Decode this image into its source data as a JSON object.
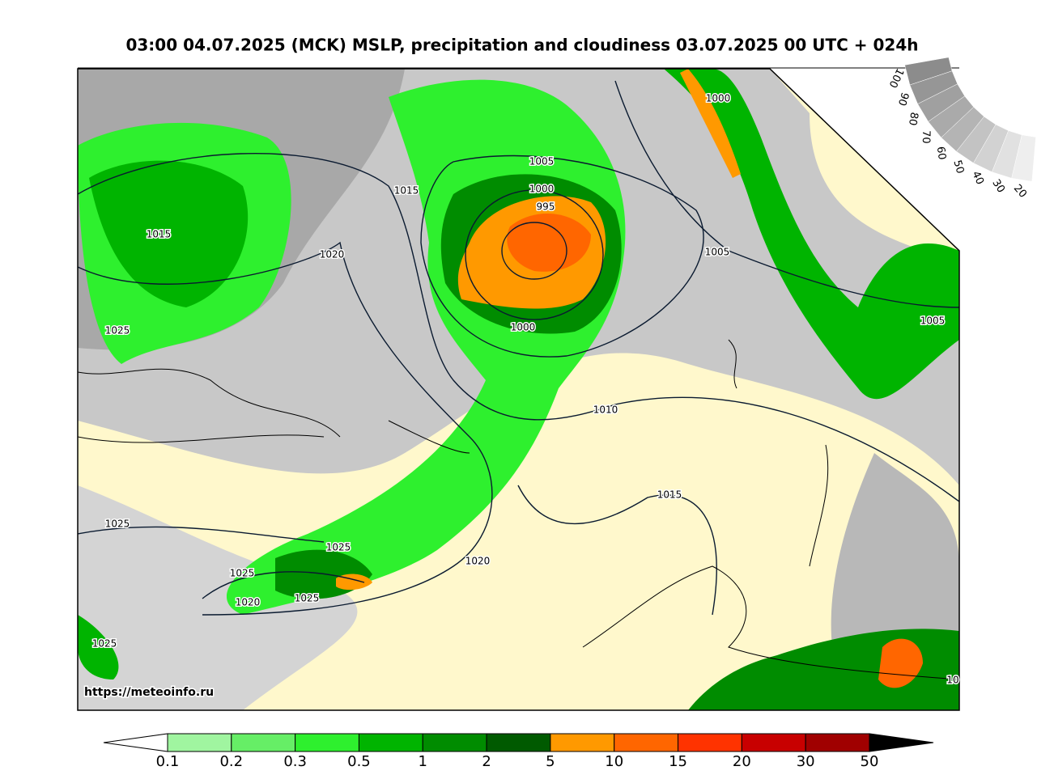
{
  "header": {
    "title": "03:00 04.07.2025 (MCK) MSLP, precipitation and cloudiness 03.07.2025 00 UTC + 024h"
  },
  "map": {
    "url": "https://meteoinfo.ru",
    "isobars": [
      "1000",
      "1005",
      "1000",
      "995",
      "1015",
      "1015",
      "1020",
      "1005",
      "1000",
      "1005",
      "1025",
      "1010",
      "1015",
      "1025",
      "1025",
      "1020",
      "1025",
      "1020",
      "1025",
      "1025",
      "10"
    ]
  },
  "cloud_scale": {
    "labels": [
      "100",
      "90",
      "80",
      "70",
      "60",
      "50",
      "40",
      "30",
      "20"
    ],
    "colors": [
      "#8c8c8c",
      "#969696",
      "#a0a0a0",
      "#aaaaaa",
      "#b4b4b4",
      "#c3c3c3",
      "#d2d2d2",
      "#e1e1e1",
      "#eeeeee"
    ]
  },
  "colorbar": {
    "labels": [
      "0.1",
      "0.2",
      "0.3",
      "0.5",
      "1",
      "2",
      "5",
      "10",
      "15",
      "20",
      "30",
      "50"
    ],
    "colors": [
      "#a0f5a0",
      "#66ee66",
      "#2ef02e",
      "#00b400",
      "#008c00",
      "#005a00",
      "#ff9900",
      "#ff6600",
      "#ff3300",
      "#c80000",
      "#a00000"
    ]
  }
}
